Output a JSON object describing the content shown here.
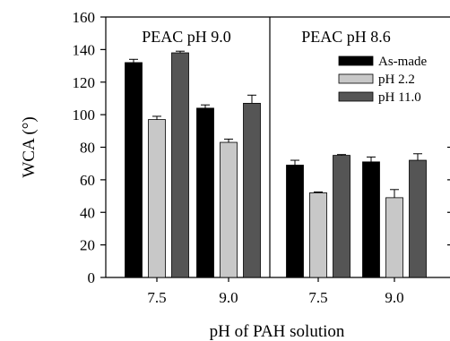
{
  "chart_data": {
    "type": "bar",
    "ylabel": "WCA (°)",
    "xlabel": "pH of PAH solution",
    "ylim": [
      0,
      160
    ],
    "yticks": [
      0,
      20,
      40,
      60,
      80,
      100,
      120,
      140,
      160
    ],
    "grid": false,
    "legend_position": "top-right",
    "series": [
      {
        "name": "As-made",
        "color": "#000000"
      },
      {
        "name": "pH 2.2",
        "color": "#c8c8c8"
      },
      {
        "name": "pH 11.0",
        "color": "#555555"
      }
    ],
    "panels": [
      {
        "title": "PEAC pH 9.0",
        "categories": [
          "7.5",
          "9.0"
        ],
        "values": [
          [
            132,
            97,
            138
          ],
          [
            104,
            83,
            107
          ]
        ],
        "errors": [
          [
            2,
            2,
            1
          ],
          [
            2,
            2,
            5
          ]
        ]
      },
      {
        "title": "PEAC pH 8.6",
        "categories": [
          "7.5",
          "9.0"
        ],
        "values": [
          [
            69,
            52,
            75
          ],
          [
            71,
            49,
            72
          ]
        ],
        "errors": [
          [
            3,
            0.5,
            0.5
          ],
          [
            3,
            5,
            4
          ]
        ]
      }
    ]
  }
}
